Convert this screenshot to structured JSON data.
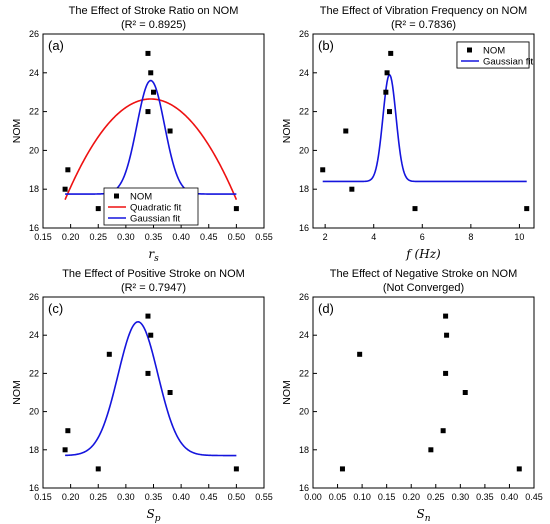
{
  "chart_data": [
    {
      "type": "scatter",
      "panel_label": "(a)",
      "title": "The Effect of Stroke Ratio on NOM",
      "subtitle": "(R² = 0.8925)",
      "xlabel": "r",
      "xlabel_sub": "s",
      "ylabel": "NOM",
      "xlim": [
        0.15,
        0.55
      ],
      "ylim": [
        16,
        26
      ],
      "xticks": [
        0.15,
        0.2,
        0.25,
        0.3,
        0.35,
        0.4,
        0.45,
        0.5,
        0.55
      ],
      "xticklabels": [
        "0.15",
        "0.20",
        "0.25",
        "0.30",
        "0.35",
        "0.40",
        "0.45",
        "0.50",
        "0.55"
      ],
      "yticks": [
        16,
        18,
        20,
        22,
        24,
        26
      ],
      "legend_position": "bottom-center",
      "points": {
        "name": "NOM",
        "x": [
          0.19,
          0.195,
          0.25,
          0.34,
          0.34,
          0.345,
          0.35,
          0.38,
          0.5
        ],
        "y": [
          18,
          19,
          17,
          25,
          22,
          24,
          23,
          21,
          17
        ]
      },
      "fits": [
        {
          "name": "Quadratic fit",
          "kind": "quadratic",
          "color": "#ee1111",
          "peak_x": 0.345,
          "peak_y": 22.65,
          "curvature": 216,
          "x_range": [
            0.19,
            0.5
          ]
        },
        {
          "name": "Gaussian fit",
          "kind": "gaussian",
          "color": "#1515dd",
          "baseline": 17.75,
          "amplitude": 5.85,
          "center": 0.345,
          "sigma": 0.025,
          "x_range": [
            0.19,
            0.5
          ]
        }
      ]
    },
    {
      "type": "scatter",
      "panel_label": "(b)",
      "title": "The Effect of Vibration Frequency on NOM",
      "subtitle": "(R² = 0.7836)",
      "xlabel": "f (Hz)",
      "ylabel": "NOM",
      "xlim": [
        1.5,
        10.6
      ],
      "ylim": [
        16,
        26
      ],
      "xticks": [
        2,
        4,
        6,
        8,
        10
      ],
      "xticklabels": [
        "2",
        "4",
        "6",
        "8",
        "10"
      ],
      "yticks": [
        16,
        18,
        20,
        22,
        24,
        26
      ],
      "legend_position": "top-right",
      "points": {
        "name": "NOM",
        "x": [
          1.9,
          2.85,
          3.1,
          4.5,
          4.55,
          4.65,
          4.7,
          5.7,
          10.3
        ],
        "y": [
          19,
          21,
          18,
          23,
          24,
          22,
          25,
          17,
          17
        ]
      },
      "fits": [
        {
          "name": "Gaussian fit",
          "kind": "gaussian",
          "color": "#1515dd",
          "baseline": 18.4,
          "amplitude": 5.5,
          "center": 4.65,
          "sigma": 0.27,
          "x_range": [
            1.9,
            10.3
          ]
        }
      ]
    },
    {
      "type": "scatter",
      "panel_label": "(c)",
      "title": "The Effect of Positive Stroke on NOM",
      "subtitle": "(R² = 0.7947)",
      "xlabel": "S",
      "xlabel_sub": "p",
      "ylabel": "NOM",
      "xlim": [
        0.15,
        0.55
      ],
      "ylim": [
        16,
        26
      ],
      "xticks": [
        0.15,
        0.2,
        0.25,
        0.3,
        0.35,
        0.4,
        0.45,
        0.5,
        0.55
      ],
      "xticklabels": [
        "0.15",
        "0.20",
        "0.25",
        "0.30",
        "0.35",
        "0.40",
        "0.45",
        "0.50",
        "0.55"
      ],
      "yticks": [
        16,
        18,
        20,
        22,
        24,
        26
      ],
      "legend_position": "top-right",
      "points": {
        "name": "NOM",
        "x": [
          0.19,
          0.195,
          0.25,
          0.27,
          0.34,
          0.34,
          0.345,
          0.38,
          0.5
        ],
        "y": [
          18,
          19,
          17,
          23,
          25,
          22,
          24,
          21,
          17
        ]
      },
      "fits": [
        {
          "name": "Gaussian fit",
          "kind": "gaussian",
          "color": "#1515dd",
          "baseline": 17.7,
          "amplitude": 7.0,
          "center": 0.322,
          "sigma": 0.036,
          "x_range": [
            0.19,
            0.5
          ]
        }
      ]
    },
    {
      "type": "scatter",
      "panel_label": "(d)",
      "title": "The Effect of Negative Stroke on NOM",
      "subtitle": "(Not Converged)",
      "xlabel": "S",
      "xlabel_sub": "n",
      "ylabel": "NOM",
      "xlim": [
        0.0,
        0.45
      ],
      "ylim": [
        16,
        26
      ],
      "xticks": [
        0.0,
        0.05,
        0.1,
        0.15,
        0.2,
        0.25,
        0.3,
        0.35,
        0.4,
        0.45
      ],
      "xticklabels": [
        "0.00",
        "0.05",
        "0.10",
        "0.15",
        "0.20",
        "0.25",
        "0.30",
        "0.35",
        "0.40",
        "0.45"
      ],
      "yticks": [
        16,
        18,
        20,
        22,
        24,
        26
      ],
      "legend_position": "none",
      "points": {
        "name": "NOM",
        "x": [
          0.06,
          0.095,
          0.24,
          0.265,
          0.27,
          0.27,
          0.272,
          0.31,
          0.42
        ],
        "y": [
          17,
          23,
          18,
          19,
          25,
          22,
          24,
          21,
          17
        ]
      },
      "fits": []
    }
  ]
}
